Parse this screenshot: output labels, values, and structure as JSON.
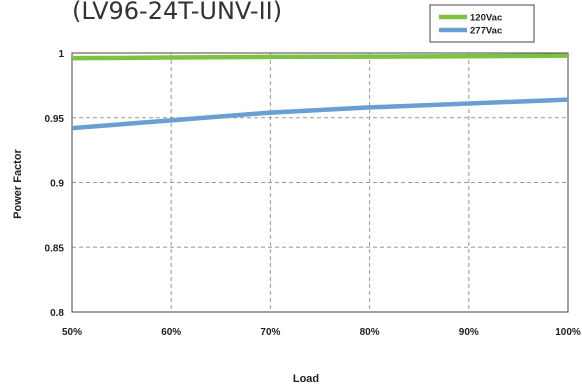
{
  "chart_data": {
    "type": "line",
    "title": "(LV96-24T-UNV-II)",
    "xlabel": "Load",
    "ylabel": "Power Factor",
    "x": [
      50,
      60,
      70,
      80,
      90,
      100
    ],
    "x_tick_labels": [
      "50%",
      "60%",
      "70%",
      "80%",
      "90%",
      "100%"
    ],
    "y_tick_labels": [
      "0.8",
      "0.85",
      "0.9",
      "0.95",
      "1"
    ],
    "y_ticks": [
      0.8,
      0.85,
      0.9,
      0.95,
      1.0
    ],
    "xlim": [
      50,
      100
    ],
    "ylim": [
      0.8,
      1.0
    ],
    "grid": true,
    "legend_position": "top-right",
    "series": [
      {
        "name": "120Vac",
        "color": "#7DC242",
        "values": [
          0.996,
          0.9965,
          0.997,
          0.9972,
          0.9975,
          0.998
        ]
      },
      {
        "name": "277Vac",
        "color": "#6A9FD4",
        "values": [
          0.942,
          0.948,
          0.954,
          0.958,
          0.961,
          0.964
        ]
      }
    ]
  }
}
